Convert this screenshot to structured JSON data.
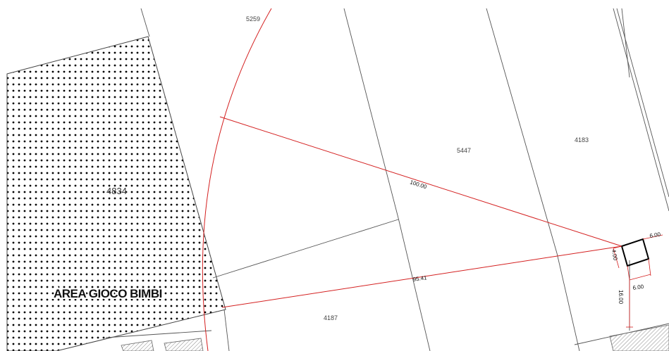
{
  "parcels": {
    "p4834": "4834",
    "p5259": "5259",
    "p5447": "5447",
    "p4183": "4183",
    "p4187": "4187"
  },
  "area_label": "AREA GIOCO BIMBI",
  "dimensions": {
    "top_distance": "100.00",
    "bottom_distance": "95.41",
    "box_width_top": "6.00",
    "box_height": "4.00",
    "box_width_bottom": "6.00",
    "offset_down": "16.00"
  },
  "colors": {
    "distance_line": "#d42020",
    "parcel_line": "#555555",
    "hatch_dot": "#000000",
    "building_hatch": "#999999"
  }
}
